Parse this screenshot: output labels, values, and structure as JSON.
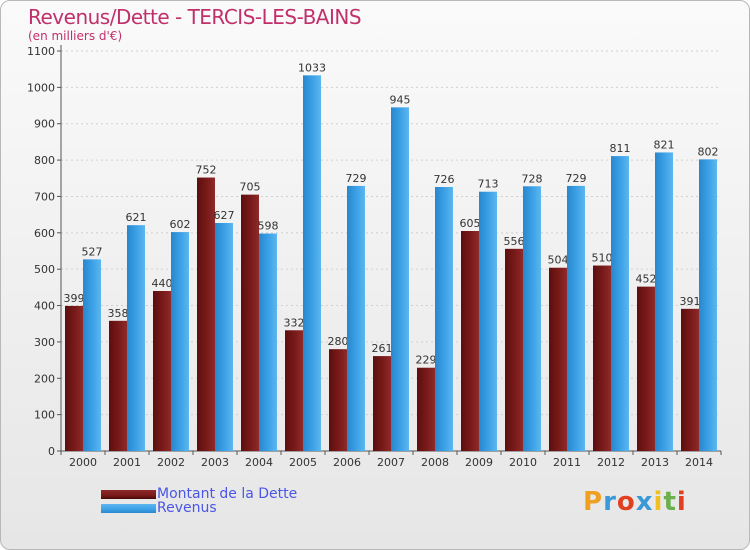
{
  "title": "Revenus/Dette - TERCIS-LES-BAINS",
  "subtitle": "(en milliers d'€)",
  "colors": {
    "dette": "#7a1a1a",
    "revenus": "#3aa0e6",
    "title": "#c0306a",
    "legend_text": "#4a56e6"
  },
  "legend": {
    "dette_label": "Montant de la Dette",
    "revenus_label": "Revenus"
  },
  "logo": {
    "letters": [
      "P",
      "r",
      "o",
      "x",
      "i",
      "t",
      "i"
    ],
    "colors": [
      "#f0a020",
      "#3a9ad9",
      "#e04020",
      "#3a9ad9",
      "#f0c020",
      "#6ab04c",
      "#e04020"
    ]
  },
  "chart_data": {
    "type": "bar",
    "title": "Revenus/Dette - TERCIS-LES-BAINS",
    "ylabel": "(en milliers d'€)",
    "categories": [
      "2000",
      "2001",
      "2002",
      "2003",
      "2004",
      "2005",
      "2006",
      "2007",
      "2008",
      "2009",
      "2010",
      "2011",
      "2012",
      "2013",
      "2014"
    ],
    "series": [
      {
        "name": "Montant de la Dette",
        "values": [
          399,
          358,
          440,
          752,
          705,
          332,
          280,
          261,
          229,
          605,
          556,
          504,
          510,
          452,
          391
        ]
      },
      {
        "name": "Revenus",
        "values": [
          527,
          621,
          602,
          627,
          598,
          1033,
          729,
          945,
          726,
          713,
          728,
          729,
          811,
          821,
          802
        ]
      }
    ],
    "ylim": [
      0,
      1100
    ],
    "yticks": [
      0,
      100,
      200,
      300,
      400,
      500,
      600,
      700,
      800,
      900,
      1000,
      1100
    ],
    "grid": true
  }
}
